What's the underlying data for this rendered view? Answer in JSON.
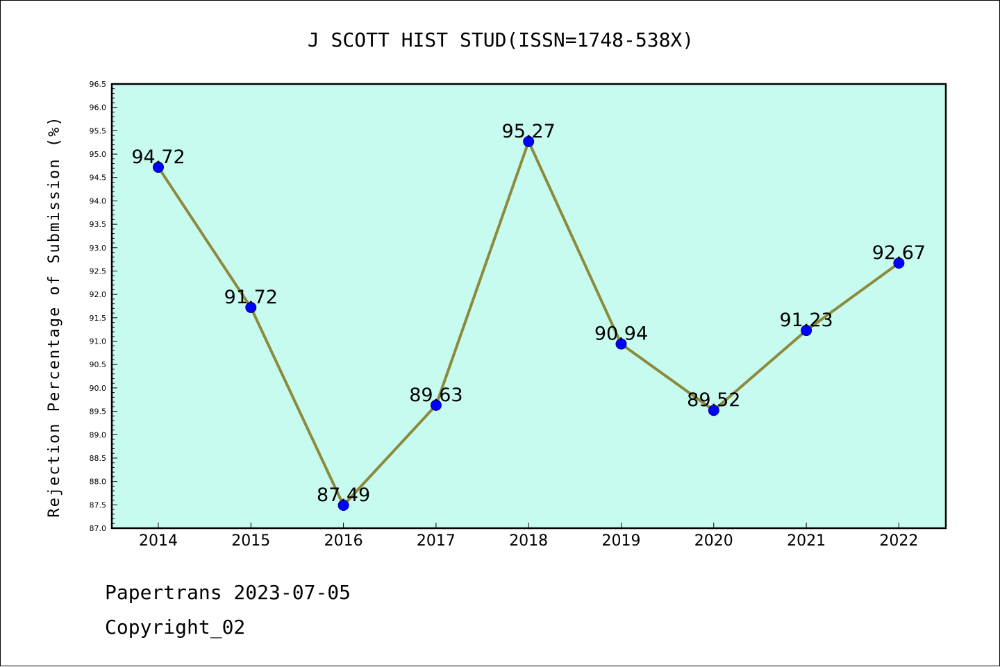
{
  "chart_data": {
    "type": "line",
    "title": "J SCOTT HIST STUD(ISSN=1748-538X)",
    "xlabel": "",
    "ylabel": "Rejection Percentage of Submission (%)",
    "categories": [
      "2014",
      "2015",
      "2016",
      "2017",
      "2018",
      "2019",
      "2020",
      "2021",
      "2022"
    ],
    "series": [
      {
        "values": [
          94.72,
          91.72,
          87.49,
          89.63,
          95.27,
          90.94,
          89.52,
          91.23,
          92.67
        ]
      }
    ],
    "data_labels": [
      "94.72",
      "91.72",
      "87.49",
      "89.63",
      "95.27",
      "90.94",
      "89.52",
      "91.23",
      "92.67"
    ],
    "ylim": [
      87.0,
      96.5
    ],
    "yticks": [
      "87.0",
      "87.5",
      "88.0",
      "88.5",
      "89.0",
      "89.5",
      "90.0",
      "90.5",
      "91.0",
      "91.5",
      "92.0",
      "92.5",
      "93.0",
      "93.5",
      "94.0",
      "94.5",
      "95.0",
      "95.5",
      "96.0",
      "96.5"
    ],
    "grid": false,
    "legend": "none"
  },
  "colors": {
    "plot_background": "#c8fbef",
    "line": "#8c8a3c",
    "marker": "#0000ff",
    "axis": "#000000"
  },
  "footer": {
    "line1": "Papertrans 2023-07-05",
    "line2": "Copyright_02"
  }
}
